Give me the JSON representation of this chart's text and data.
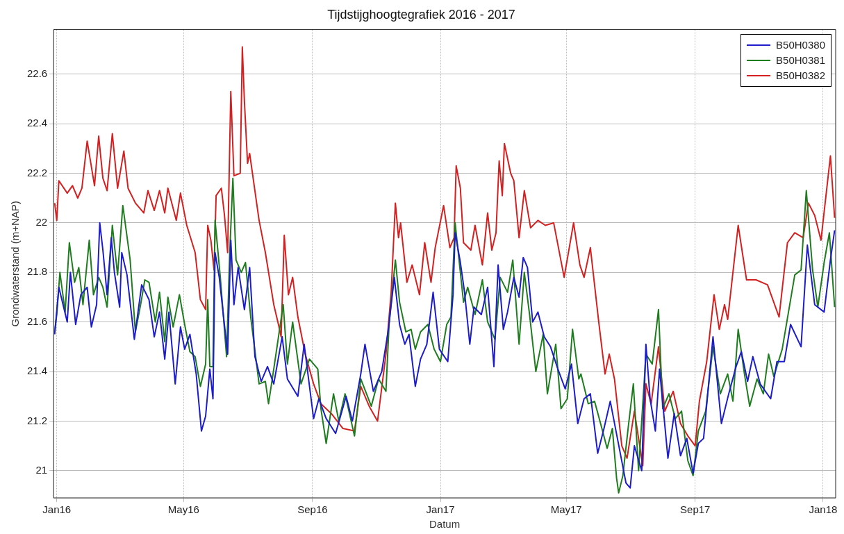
{
  "chart_data": {
    "type": "line",
    "title": "Tijdstijghoogtegrafiek 2016 - 2017",
    "xlabel": "Datum",
    "ylabel": "Grondwaterstand (m+NAP)",
    "xlim": [
      "2015-12-29",
      "2018-01-13"
    ],
    "xticks": [
      {
        "value": "2016-01-01",
        "label": "Jan16"
      },
      {
        "value": "2016-05-01",
        "label": "May16"
      },
      {
        "value": "2016-09-01",
        "label": "Sep16"
      },
      {
        "value": "2017-01-01",
        "label": "Jan17"
      },
      {
        "value": "2017-05-01",
        "label": "May17"
      },
      {
        "value": "2017-09-01",
        "label": "Sep17"
      },
      {
        "value": "2018-01-01",
        "label": "Jan18"
      }
    ],
    "ylim": [
      20.89,
      22.78
    ],
    "yticks": [
      21,
      21.2,
      21.4,
      21.6,
      21.8,
      22,
      22.2,
      22.4,
      22.6
    ],
    "grid": true,
    "legend": "top right",
    "marker": "none",
    "line_style": "solid",
    "series": [
      {
        "name": "B50H0380",
        "color": "#1c1ccc",
        "x": [
          "2015-12-30",
          "2016-01-03",
          "2016-01-07",
          "2016-01-11",
          "2016-01-14",
          "2016-01-19",
          "2016-01-24",
          "2016-01-30",
          "2016-02-03",
          "2016-02-08",
          "2016-02-11",
          "2016-02-14",
          "2016-02-18",
          "2016-02-22",
          "2016-02-25",
          "2016-03-01",
          "2016-03-03",
          "2016-03-08",
          "2016-03-15",
          "2016-03-22",
          "2016-03-29",
          "2016-04-03",
          "2016-04-08",
          "2016-04-13",
          "2016-04-17",
          "2016-04-23",
          "2016-04-28",
          "2016-05-02",
          "2016-05-07",
          "2016-05-13",
          "2016-05-18",
          "2016-05-22",
          "2016-05-26",
          "2016-05-29",
          "2016-05-31",
          "2016-06-04",
          "2016-06-12",
          "2016-06-15",
          "2016-06-18",
          "2016-06-22",
          "2016-06-28",
          "2016-07-03",
          "2016-07-08",
          "2016-07-14",
          "2016-07-20",
          "2016-07-26",
          "2016-08-03",
          "2016-08-08",
          "2016-08-18",
          "2016-08-24",
          "2016-09-02",
          "2016-09-07",
          "2016-09-14",
          "2016-09-23",
          "2016-10-03",
          "2016-10-09",
          "2016-10-17",
          "2016-10-21",
          "2016-10-29",
          "2016-11-06",
          "2016-11-12",
          "2016-11-18",
          "2016-11-23",
          "2016-11-28",
          "2016-12-02",
          "2016-12-08",
          "2016-12-13",
          "2016-12-19",
          "2016-12-25",
          "2016-12-31",
          "2017-01-08",
          "2017-01-13",
          "2017-01-15",
          "2017-01-20",
          "2017-01-24",
          "2017-01-29",
          "2017-02-02",
          "2017-02-09",
          "2017-02-15",
          "2017-02-21",
          "2017-02-25",
          "2017-03-02",
          "2017-03-06",
          "2017-03-12",
          "2017-03-17",
          "2017-03-21",
          "2017-03-25",
          "2017-03-30",
          "2017-04-04",
          "2017-04-10",
          "2017-04-16",
          "2017-04-23",
          "2017-04-30",
          "2017-05-06",
          "2017-05-12",
          "2017-05-18",
          "2017-05-24",
          "2017-05-31",
          "2017-06-06",
          "2017-06-12",
          "2017-06-17",
          "2017-06-22",
          "2017-06-27",
          "2017-07-01",
          "2017-07-05",
          "2017-07-12",
          "2017-07-16",
          "2017-07-20",
          "2017-07-25",
          "2017-07-29",
          "2017-08-06",
          "2017-08-12",
          "2017-08-18",
          "2017-08-24",
          "2017-08-30",
          "2017-09-04",
          "2017-09-09",
          "2017-09-18",
          "2017-09-26",
          "2017-10-03",
          "2017-10-10",
          "2017-10-15",
          "2017-10-21",
          "2017-10-26",
          "2017-11-02",
          "2017-11-12",
          "2017-11-18",
          "2017-11-25",
          "2017-12-01",
          "2017-12-11",
          "2017-12-17",
          "2017-12-24",
          "2018-01-02",
          "2018-01-08",
          "2018-01-12"
        ],
        "values": [
          21.55,
          21.74,
          21.67,
          21.6,
          21.8,
          21.59,
          21.71,
          21.74,
          21.58,
          21.67,
          22.0,
          21.89,
          21.71,
          21.94,
          21.8,
          21.66,
          21.88,
          21.79,
          21.53,
          21.75,
          21.69,
          21.54,
          21.64,
          21.45,
          21.64,
          21.35,
          21.58,
          21.49,
          21.55,
          21.39,
          21.16,
          21.22,
          21.41,
          21.29,
          21.88,
          21.78,
          21.47,
          21.93,
          21.67,
          21.82,
          21.65,
          21.82,
          21.46,
          21.36,
          21.42,
          21.35,
          21.54,
          21.37,
          21.3,
          21.51,
          21.21,
          21.29,
          21.21,
          21.15,
          21.3,
          21.2,
          21.39,
          21.51,
          21.32,
          21.4,
          21.56,
          21.78,
          21.59,
          21.51,
          21.55,
          21.34,
          21.45,
          21.51,
          21.72,
          21.49,
          21.44,
          21.71,
          21.96,
          21.84,
          21.72,
          21.51,
          21.66,
          21.63,
          21.74,
          21.42,
          21.83,
          21.57,
          21.64,
          21.78,
          21.7,
          21.86,
          21.82,
          21.6,
          21.64,
          21.54,
          21.5,
          21.41,
          21.33,
          21.43,
          21.19,
          21.29,
          21.31,
          21.07,
          21.17,
          21.28,
          21.17,
          21.06,
          20.95,
          20.93,
          21.1,
          21.0,
          21.51,
          21.29,
          21.16,
          21.41,
          21.05,
          21.23,
          21.06,
          21.13,
          20.99,
          21.11,
          21.13,
          21.54,
          21.19,
          21.31,
          21.42,
          21.48,
          21.36,
          21.46,
          21.35,
          21.29,
          21.44,
          21.44,
          21.59,
          21.5,
          21.91,
          21.67,
          21.64,
          21.85,
          21.97
        ]
      },
      {
        "name": "B50H0381",
        "color": "#1e7d1e",
        "x": [
          "2015-12-30",
          "2016-01-01",
          "2016-01-04",
          "2016-01-09",
          "2016-01-13",
          "2016-01-18",
          "2016-01-22",
          "2016-01-26",
          "2016-02-01",
          "2016-02-05",
          "2016-02-10",
          "2016-02-14",
          "2016-02-18",
          "2016-02-23",
          "2016-02-28",
          "2016-03-04",
          "2016-03-11",
          "2016-03-16",
          "2016-03-21",
          "2016-03-25",
          "2016-03-29",
          "2016-04-04",
          "2016-04-08",
          "2016-04-13",
          "2016-04-16",
          "2016-04-21",
          "2016-04-27",
          "2016-05-02",
          "2016-05-07",
          "2016-05-12",
          "2016-05-17",
          "2016-05-22",
          "2016-05-24",
          "2016-05-26",
          "2016-05-29",
          "2016-05-31",
          "2016-06-05",
          "2016-06-11",
          "2016-06-14",
          "2016-06-17",
          "2016-06-20",
          "2016-06-25",
          "2016-06-29",
          "2016-07-04",
          "2016-07-12",
          "2016-07-18",
          "2016-07-21",
          "2016-07-26",
          "2016-08-04",
          "2016-08-08",
          "2016-08-13",
          "2016-08-21",
          "2016-08-29",
          "2016-09-06",
          "2016-09-09",
          "2016-09-14",
          "2016-09-21",
          "2016-09-26",
          "2016-10-02",
          "2016-10-11",
          "2016-10-17",
          "2016-10-27",
          "2016-11-03",
          "2016-11-10",
          "2016-11-13",
          "2016-11-19",
          "2016-11-23",
          "2016-11-29",
          "2016-12-04",
          "2016-12-08",
          "2016-12-13",
          "2016-12-20",
          "2016-12-26",
          "2017-01-01",
          "2017-01-07",
          "2017-01-11",
          "2017-01-15",
          "2017-01-18",
          "2017-01-23",
          "2017-01-27",
          "2017-02-03",
          "2017-02-10",
          "2017-02-15",
          "2017-02-22",
          "2017-02-27",
          "2017-03-06",
          "2017-03-11",
          "2017-03-17",
          "2017-03-22",
          "2017-03-27",
          "2017-04-02",
          "2017-04-09",
          "2017-04-13",
          "2017-04-21",
          "2017-04-26",
          "2017-05-02",
          "2017-05-07",
          "2017-05-13",
          "2017-05-15",
          "2017-05-22",
          "2017-05-28",
          "2017-06-04",
          "2017-06-09",
          "2017-06-14",
          "2017-06-18",
          "2017-06-20",
          "2017-06-24",
          "2017-06-29",
          "2017-07-04",
          "2017-07-09",
          "2017-07-16",
          "2017-07-22",
          "2017-07-28",
          "2017-08-01",
          "2017-08-07",
          "2017-08-13",
          "2017-08-19",
          "2017-08-25",
          "2017-08-30",
          "2017-09-04",
          "2017-09-11",
          "2017-09-18",
          "2017-09-25",
          "2017-10-02",
          "2017-10-07",
          "2017-10-12",
          "2017-10-18",
          "2017-10-23",
          "2017-10-30",
          "2017-11-05",
          "2017-11-10",
          "2017-11-15",
          "2017-11-23",
          "2017-11-29",
          "2017-12-05",
          "2017-12-11",
          "2017-12-16",
          "2017-12-22",
          "2017-12-27",
          "2018-01-02",
          "2018-01-07",
          "2018-01-12"
        ],
        "values": [
          21.56,
          21.63,
          21.8,
          21.64,
          21.92,
          21.76,
          21.82,
          21.67,
          21.93,
          21.71,
          21.78,
          21.74,
          21.66,
          21.99,
          21.79,
          22.07,
          21.85,
          21.56,
          21.67,
          21.77,
          21.76,
          21.6,
          21.72,
          21.52,
          21.7,
          21.58,
          21.71,
          21.59,
          21.48,
          21.46,
          21.34,
          21.43,
          21.69,
          21.42,
          21.42,
          22.01,
          21.78,
          21.46,
          21.88,
          22.18,
          21.85,
          21.8,
          21.84,
          21.62,
          21.35,
          21.36,
          21.27,
          21.41,
          21.67,
          21.43,
          21.6,
          21.35,
          21.45,
          21.41,
          21.25,
          21.11,
          21.31,
          21.2,
          21.31,
          21.14,
          21.37,
          21.26,
          21.37,
          21.32,
          21.59,
          21.85,
          21.68,
          21.56,
          21.57,
          21.49,
          21.56,
          21.59,
          21.49,
          21.44,
          21.59,
          21.62,
          22.0,
          21.88,
          21.68,
          21.74,
          21.63,
          21.77,
          21.6,
          21.53,
          21.78,
          21.72,
          21.85,
          21.51,
          21.8,
          21.63,
          21.4,
          21.55,
          21.31,
          21.51,
          21.25,
          21.29,
          21.57,
          21.37,
          21.39,
          21.27,
          21.28,
          21.17,
          21.09,
          21.17,
          20.97,
          20.91,
          20.98,
          21.17,
          21.35,
          21.0,
          21.47,
          21.43,
          21.65,
          21.25,
          21.31,
          21.21,
          21.24,
          21.04,
          20.98,
          21.16,
          21.24,
          21.5,
          21.31,
          21.39,
          21.28,
          21.57,
          21.39,
          21.26,
          21.37,
          21.31,
          21.47,
          21.38,
          21.49,
          21.64,
          21.79,
          21.81,
          22.13,
          21.81,
          21.66,
          21.84,
          21.96,
          21.66
        ]
      },
      {
        "name": "B50H0382",
        "color": "#d42020",
        "x": [
          "2015-12-30",
          "2016-01-01",
          "2016-01-03",
          "2016-01-11",
          "2016-01-16",
          "2016-01-21",
          "2016-01-25",
          "2016-01-30",
          "2016-02-06",
          "2016-02-10",
          "2016-02-14",
          "2016-02-18",
          "2016-02-23",
          "2016-02-28",
          "2016-03-05",
          "2016-03-09",
          "2016-03-16",
          "2016-03-24",
          "2016-03-28",
          "2016-04-03",
          "2016-04-08",
          "2016-04-13",
          "2016-04-16",
          "2016-04-24",
          "2016-04-28",
          "2016-05-04",
          "2016-05-12",
          "2016-05-17",
          "2016-05-22",
          "2016-05-24",
          "2016-05-27",
          "2016-05-30",
          "2016-06-01",
          "2016-06-06",
          "2016-06-09",
          "2016-06-12",
          "2016-06-15",
          "2016-06-18",
          "2016-06-24",
          "2016-06-26",
          "2016-06-28",
          "2016-07-01",
          "2016-07-03",
          "2016-07-08",
          "2016-07-12",
          "2016-07-18",
          "2016-07-26",
          "2016-07-31",
          "2016-08-02",
          "2016-08-05",
          "2016-08-09",
          "2016-08-13",
          "2016-08-18",
          "2016-08-25",
          "2016-09-02",
          "2016-09-09",
          "2016-09-19",
          "2016-09-30",
          "2016-10-11",
          "2016-10-17",
          "2016-10-25",
          "2016-11-02",
          "2016-11-10",
          "2016-11-15",
          "2016-11-19",
          "2016-11-22",
          "2016-11-24",
          "2016-11-30",
          "2016-12-05",
          "2016-12-12",
          "2016-12-17",
          "2016-12-23",
          "2016-12-27",
          "2017-01-04",
          "2017-01-10",
          "2017-01-14",
          "2017-01-16",
          "2017-01-20",
          "2017-01-23",
          "2017-01-30",
          "2017-02-03",
          "2017-02-10",
          "2017-02-15",
          "2017-02-19",
          "2017-02-23",
          "2017-02-26",
          "2017-03-01",
          "2017-03-03",
          "2017-03-09",
          "2017-03-12",
          "2017-03-17",
          "2017-03-22",
          "2017-03-28",
          "2017-04-04",
          "2017-04-11",
          "2017-04-19",
          "2017-04-29",
          "2017-05-08",
          "2017-05-14",
          "2017-05-18",
          "2017-05-24",
          "2017-06-01",
          "2017-06-07",
          "2017-06-11",
          "2017-06-16",
          "2017-06-23",
          "2017-06-28",
          "2017-07-05",
          "2017-07-13",
          "2017-07-16",
          "2017-07-21",
          "2017-07-28",
          "2017-08-03",
          "2017-08-11",
          "2017-08-18",
          "2017-08-25",
          "2017-09-01",
          "2017-09-05",
          "2017-09-12",
          "2017-09-19",
          "2017-09-24",
          "2017-09-29",
          "2017-10-02",
          "2017-10-12",
          "2017-10-20",
          "2017-10-29",
          "2017-11-09",
          "2017-11-20",
          "2017-11-28",
          "2017-12-05",
          "2017-12-13",
          "2017-12-18",
          "2017-12-24",
          "2017-12-30",
          "2018-01-08",
          "2018-01-12"
        ],
        "values": [
          22.08,
          22.01,
          22.17,
          22.12,
          22.15,
          22.1,
          22.14,
          22.33,
          22.15,
          22.35,
          22.18,
          22.13,
          22.36,
          22.14,
          22.29,
          22.14,
          22.08,
          22.04,
          22.13,
          22.05,
          22.13,
          22.04,
          22.14,
          22.01,
          22.12,
          21.99,
          21.88,
          21.69,
          21.65,
          21.99,
          21.93,
          21.81,
          22.11,
          22.14,
          22.03,
          21.88,
          22.53,
          22.19,
          22.2,
          22.71,
          22.49,
          22.24,
          22.28,
          22.13,
          22.01,
          21.88,
          21.67,
          21.58,
          21.54,
          21.95,
          21.71,
          21.78,
          21.62,
          21.47,
          21.35,
          21.27,
          21.23,
          21.17,
          21.16,
          21.34,
          21.26,
          21.2,
          21.47,
          21.72,
          22.08,
          21.94,
          22.0,
          21.76,
          21.83,
          21.71,
          21.92,
          21.76,
          21.9,
          22.07,
          21.9,
          21.94,
          22.23,
          22.14,
          21.92,
          21.89,
          21.99,
          21.83,
          22.04,
          21.89,
          21.96,
          22.25,
          22.11,
          22.32,
          22.2,
          22.17,
          21.94,
          22.13,
          21.98,
          22.01,
          21.99,
          22.0,
          21.78,
          22.0,
          21.83,
          21.78,
          21.9,
          21.6,
          21.39,
          21.47,
          21.37,
          21.1,
          21.05,
          21.24,
          21.02,
          21.35,
          21.27,
          21.5,
          21.24,
          21.32,
          21.19,
          21.14,
          21.1,
          21.28,
          21.44,
          21.71,
          21.57,
          21.67,
          21.61,
          21.99,
          21.77,
          21.77,
          21.75,
          21.62,
          21.92,
          21.96,
          21.94,
          22.08,
          22.03,
          21.93,
          22.27,
          22.02
        ]
      }
    ]
  }
}
